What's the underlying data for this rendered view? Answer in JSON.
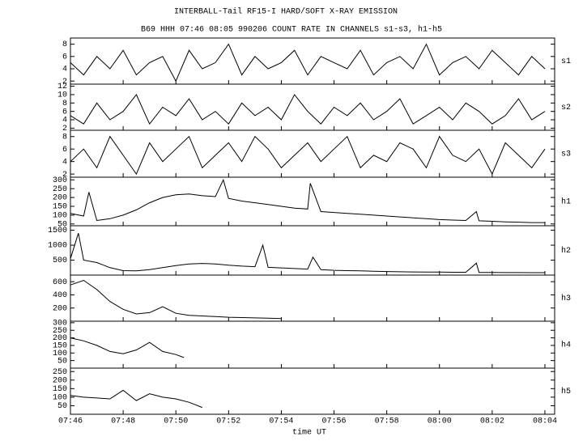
{
  "title": "INTERBALL-Tail RF15-I HARD/SOFT X-RAY EMISSION",
  "subtitle": "B69 HHH 07:46 08:05 990206  COUNT RATE IN CHANNELS s1-s3, h1-h5",
  "x_axis": {
    "label": "time UT",
    "xlim": [
      466,
      484.37
    ],
    "xticks": [
      {
        "value": 466,
        "label": "07:46"
      },
      {
        "value": 468,
        "label": "07:48"
      },
      {
        "value": 470,
        "label": "07:50"
      },
      {
        "value": 472,
        "label": "07:52"
      },
      {
        "value": 474,
        "label": "07:54"
      },
      {
        "value": 476,
        "label": "07:56"
      },
      {
        "value": 478,
        "label": "07:58"
      },
      {
        "value": 480,
        "label": "08:00"
      },
      {
        "value": 482,
        "label": "08:02"
      },
      {
        "value": 484,
        "label": "08:04"
      }
    ]
  },
  "chart_data": [
    {
      "type": "line",
      "name": "s1",
      "color": "#000000",
      "ylim": [
        1.5,
        9
      ],
      "yticks": [
        2,
        4,
        6,
        8
      ],
      "x": [
        466,
        466.5,
        467,
        467.5,
        468,
        468.5,
        469,
        469.5,
        470,
        470.5,
        471,
        471.5,
        472,
        472.5,
        473,
        473.5,
        474,
        474.5,
        475,
        475.5,
        476,
        476.5,
        477,
        477.5,
        478,
        478.5,
        479,
        479.5,
        480,
        480.5,
        481,
        481.5,
        482,
        482.5,
        483,
        483.5,
        484
      ],
      "values": [
        5,
        3,
        6,
        4,
        7,
        3,
        5,
        6,
        2,
        7,
        4,
        5,
        8,
        3,
        6,
        4,
        5,
        7,
        3,
        6,
        5,
        4,
        7,
        3,
        5,
        6,
        4,
        8,
        3,
        5,
        6,
        4,
        7,
        5,
        3,
        6,
        4
      ]
    },
    {
      "type": "line",
      "name": "s2",
      "color": "#000000",
      "ylim": [
        1.5,
        12.5
      ],
      "yticks": [
        2,
        4,
        6,
        8,
        10,
        12
      ],
      "x": [
        466,
        466.5,
        467,
        467.5,
        468,
        468.5,
        469,
        469.5,
        470,
        470.5,
        471,
        471.5,
        472,
        472.5,
        473,
        473.5,
        474,
        474.5,
        475,
        475.5,
        476,
        476.5,
        477,
        477.5,
        478,
        478.5,
        479,
        479.5,
        480,
        480.5,
        481,
        481.5,
        482,
        482.5,
        483,
        483.5,
        484
      ],
      "values": [
        5,
        3,
        8,
        4,
        6,
        10,
        3,
        7,
        5,
        9,
        4,
        6,
        3,
        8,
        5,
        7,
        4,
        10,
        6,
        3,
        7,
        5,
        8,
        4,
        6,
        9,
        3,
        5,
        7,
        4,
        8,
        6,
        3,
        5,
        9,
        4,
        6
      ]
    },
    {
      "type": "line",
      "name": "s3",
      "color": "#000000",
      "ylim": [
        1.5,
        9
      ],
      "yticks": [
        2,
        4,
        6,
        8
      ],
      "x": [
        466,
        466.5,
        467,
        467.5,
        468,
        468.5,
        469,
        469.5,
        470,
        470.5,
        471,
        471.5,
        472,
        472.5,
        473,
        473.5,
        474,
        474.5,
        475,
        475.5,
        476,
        476.5,
        477,
        477.5,
        478,
        478.5,
        479,
        479.5,
        480,
        480.5,
        481,
        481.5,
        482,
        482.5,
        483,
        483.5,
        484
      ],
      "values": [
        4,
        6,
        3,
        8,
        5,
        2,
        7,
        4,
        6,
        8,
        3,
        5,
        7,
        4,
        8,
        6,
        3,
        5,
        7,
        4,
        6,
        8,
        3,
        5,
        4,
        7,
        6,
        3,
        8,
        5,
        4,
        6,
        2,
        7,
        5,
        3,
        6
      ]
    },
    {
      "type": "line",
      "name": "h1",
      "color": "#000000",
      "ylim": [
        40,
        315
      ],
      "yticks": [
        50,
        100,
        150,
        200,
        250,
        300
      ],
      "x": [
        466,
        466.5,
        466.7,
        467,
        467.5,
        468,
        468.5,
        469,
        469.5,
        470,
        470.5,
        471,
        471.5,
        471.8,
        472,
        472.5,
        473,
        473.5,
        474,
        474.5,
        475,
        475.1,
        475.5,
        476,
        476.5,
        477,
        477.5,
        478,
        478.5,
        479,
        479.5,
        480,
        480.5,
        481,
        481.4,
        481.5,
        482,
        482.5,
        483,
        483.5,
        484
      ],
      "values": [
        110,
        95,
        230,
        70,
        80,
        100,
        130,
        170,
        200,
        215,
        220,
        210,
        205,
        300,
        195,
        180,
        170,
        160,
        150,
        140,
        135,
        280,
        120,
        115,
        110,
        105,
        100,
        95,
        90,
        85,
        80,
        75,
        72,
        70,
        120,
        68,
        65,
        62,
        60,
        58,
        58
      ]
    },
    {
      "type": "line",
      "name": "h2",
      "color": "#000000",
      "ylim": [
        0,
        1650
      ],
      "yticks": [
        500,
        1000,
        1500
      ],
      "x": [
        466,
        466.3,
        466.5,
        467,
        467.5,
        468,
        468.5,
        469,
        469.5,
        470,
        470.5,
        471,
        471.5,
        472,
        472.5,
        473,
        473.3,
        473.5,
        474,
        474.5,
        475,
        475.2,
        475.5,
        476,
        476.5,
        477,
        477.5,
        478,
        478.5,
        479,
        479.5,
        480,
        480.5,
        481,
        481.4,
        481.5,
        482,
        482.5,
        483,
        483.5,
        484
      ],
      "values": [
        550,
        1400,
        500,
        420,
        250,
        150,
        140,
        180,
        250,
        320,
        370,
        390,
        370,
        330,
        300,
        280,
        1000,
        260,
        240,
        220,
        200,
        600,
        180,
        160,
        150,
        140,
        130,
        120,
        110,
        105,
        100,
        100,
        95,
        95,
        400,
        90,
        90,
        85,
        85,
        80,
        80
      ]
    },
    {
      "type": "line",
      "name": "h3",
      "color": "#000000",
      "ylim": [
        0,
        700
      ],
      "yticks": [
        200,
        400,
        600
      ],
      "x": [
        466,
        466.5,
        467,
        467.5,
        468,
        468.5,
        469,
        469.5,
        470,
        470.5,
        471,
        471.5,
        472,
        472.5,
        473,
        473.5,
        474
      ],
      "values": [
        550,
        620,
        480,
        300,
        180,
        110,
        130,
        220,
        120,
        90,
        80,
        70,
        60,
        55,
        50,
        45,
        40
      ]
    },
    {
      "type": "line",
      "name": "h4",
      "color": "#000000",
      "ylim": [
        0,
        310
      ],
      "yticks": [
        50,
        100,
        150,
        200,
        250,
        300
      ],
      "x": [
        466,
        466.5,
        467,
        467.5,
        468,
        468.5,
        469,
        469.5,
        470,
        470.3
      ],
      "values": [
        200,
        180,
        150,
        110,
        95,
        120,
        170,
        110,
        90,
        70
      ]
    },
    {
      "type": "line",
      "name": "h5",
      "color": "#000000",
      "ylim": [
        0,
        270
      ],
      "yticks": [
        50,
        100,
        150,
        200,
        250
      ],
      "x": [
        466,
        466.5,
        467,
        467.5,
        468,
        468.5,
        469,
        469.5,
        470,
        470.5,
        471
      ],
      "values": [
        110,
        100,
        95,
        90,
        140,
        80,
        120,
        100,
        90,
        70,
        40
      ]
    }
  ]
}
